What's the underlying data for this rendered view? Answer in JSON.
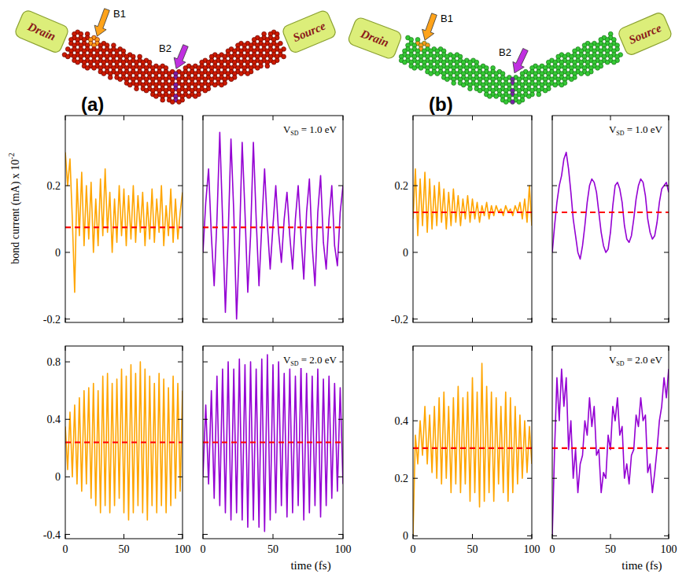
{
  "diagrams": [
    {
      "letter": "(a)",
      "drain": "Drain",
      "source": "Source",
      "bond_labels": [
        "B1",
        "B2"
      ]
    },
    {
      "letter": "(b)",
      "drain": "Drain",
      "source": "Source",
      "bond_labels": [
        "B1",
        "B2"
      ]
    }
  ],
  "chart_data": [
    {
      "type": "line",
      "ylabel": "bond current (mA) x 10",
      "ylabel_sup": "-2",
      "x": [
        0,
        2,
        4,
        6,
        8,
        10,
        12,
        14,
        16,
        18,
        20,
        22,
        24,
        26,
        28,
        30,
        32,
        34,
        36,
        38,
        40,
        42,
        44,
        46,
        48,
        50,
        52,
        54,
        56,
        58,
        60,
        62,
        64,
        66,
        68,
        70,
        72,
        74,
        76,
        78,
        80,
        82,
        84,
        86,
        88,
        90,
        92,
        94,
        96,
        98,
        100
      ],
      "xlim": [
        0,
        100
      ],
      "xticks": [
        0,
        50,
        100
      ],
      "ylim": [
        -0.21,
        0.41
      ],
      "yticks": [
        -0.2,
        0,
        0.2
      ],
      "tick_labels": "y",
      "series": [
        {
          "color": "#ffa500",
          "line_style": "solid",
          "values": [
            0.3,
            0.2,
            0.28,
            0.1,
            -0.12,
            0.22,
            0.05,
            0.24,
            0.02,
            0.2,
            0.04,
            0.21,
            0,
            0.16,
            0.02,
            0.22,
            0.05,
            0.25,
            0.06,
            0.18,
            0,
            0.16,
            0.03,
            0.2,
            0.05,
            0.19,
            0.02,
            0.17,
            0.04,
            0.2,
            0.03,
            0.17,
            0.06,
            0.18,
            0.02,
            0.15,
            0.04,
            0.19,
            0.03,
            0.16,
            0.06,
            0.2,
            0.02,
            0.14,
            0.05,
            0.19,
            0.03,
            0.16,
            0.04,
            0.12,
            0.18
          ]
        }
      ],
      "mean": {
        "value": 0.075,
        "color": "#ff0000",
        "line_style": "dashed"
      }
    },
    {
      "type": "line",
      "x": [
        0,
        2,
        4,
        6,
        8,
        10,
        12,
        14,
        16,
        18,
        20,
        22,
        24,
        26,
        28,
        30,
        32,
        34,
        36,
        38,
        40,
        42,
        44,
        46,
        48,
        50,
        52,
        54,
        56,
        58,
        60,
        62,
        64,
        66,
        68,
        70,
        72,
        74,
        76,
        78,
        80,
        82,
        84,
        86,
        88,
        90,
        92,
        94,
        96,
        98,
        100
      ],
      "xlim": [
        0,
        100
      ],
      "xticks": [
        0,
        50,
        100
      ],
      "ylim": [
        -0.21,
        0.41
      ],
      "yticks": [
        -0.2,
        0,
        0.2
      ],
      "tick_labels": false,
      "annotation": {
        "main": "V",
        "sub": "SD",
        "rest": " = 1.0 eV"
      },
      "series": [
        {
          "color": "#9400d3",
          "line_style": "solid",
          "values": [
            0,
            0.15,
            0.25,
            0.05,
            -0.1,
            0.1,
            0.36,
            0.1,
            -0.18,
            0.05,
            0.34,
            0.12,
            -0.2,
            0.02,
            0.33,
            0.12,
            -0.12,
            0.05,
            0.33,
            0.1,
            -0.1,
            0.08,
            0.25,
            0.08,
            -0.05,
            0.08,
            0.2,
            0.06,
            -0.03,
            0.1,
            0.18,
            0.05,
            -0.05,
            0.1,
            0.2,
            0.05,
            -0.08,
            0.12,
            0.22,
            0.02,
            -0.1,
            0.12,
            0.23,
            0.03,
            -0.05,
            0.1,
            0.2,
            0.02,
            -0.04,
            0.12,
            0.2
          ]
        }
      ],
      "mean": {
        "value": 0.075,
        "color": "#ff0000",
        "line_style": "dashed"
      }
    },
    {
      "type": "line",
      "x": [
        0,
        2,
        4,
        6,
        8,
        10,
        12,
        14,
        16,
        18,
        20,
        22,
        24,
        26,
        28,
        30,
        32,
        34,
        36,
        38,
        40,
        42,
        44,
        46,
        48,
        50,
        52,
        54,
        56,
        58,
        60,
        62,
        64,
        66,
        68,
        70,
        72,
        74,
        76,
        78,
        80,
        82,
        84,
        86,
        88,
        90,
        92,
        94,
        96,
        98,
        100
      ],
      "xlim": [
        0,
        100
      ],
      "xticks": [
        0,
        50,
        100
      ],
      "ylim": [
        -0.43,
        0.91
      ],
      "yticks": [
        -0.4,
        0,
        0.4,
        0.8
      ],
      "tick_labels": true,
      "series": [
        {
          "color": "#ffa500",
          "line_style": "solid",
          "values": [
            0.35,
            0.05,
            0.45,
            0,
            0.5,
            -0.05,
            0.55,
            -0.1,
            0.6,
            -0.05,
            0.62,
            -0.15,
            0.65,
            -0.2,
            0.6,
            -0.25,
            0.7,
            -0.2,
            0.72,
            -0.25,
            0.65,
            -0.2,
            0.68,
            -0.15,
            0.75,
            -0.25,
            0.7,
            -0.3,
            0.78,
            -0.25,
            0.72,
            -0.2,
            0.8,
            -0.25,
            0.75,
            -0.3,
            0.7,
            -0.2,
            0.65,
            -0.25,
            0.72,
            -0.2,
            0.68,
            -0.25,
            0.62,
            -0.2,
            0.7,
            -0.15,
            0.65,
            -0.1,
            0.6
          ]
        }
      ],
      "mean": {
        "value": 0.24,
        "color": "#ff0000",
        "line_style": "dashed"
      }
    },
    {
      "type": "line",
      "xlabel": "time (fs)",
      "x": [
        0,
        2,
        4,
        6,
        8,
        10,
        12,
        14,
        16,
        18,
        20,
        22,
        24,
        26,
        28,
        30,
        32,
        34,
        36,
        38,
        40,
        42,
        44,
        46,
        48,
        50,
        52,
        54,
        56,
        58,
        60,
        62,
        64,
        66,
        68,
        70,
        72,
        74,
        76,
        78,
        80,
        82,
        84,
        86,
        88,
        90,
        92,
        94,
        96,
        98,
        100
      ],
      "xlim": [
        0,
        100
      ],
      "xticks": [
        0,
        50,
        100
      ],
      "ylim": [
        -0.43,
        0.91
      ],
      "yticks": [
        -0.4,
        0,
        0.4,
        0.8
      ],
      "tick_labels": "x",
      "annotation": {
        "main": "V",
        "sub": "SD",
        "rest": " = 2.0 eV"
      },
      "series": [
        {
          "color": "#9400d3",
          "line_style": "solid",
          "values": [
            0,
            0.5,
            -0.05,
            0.6,
            -0.15,
            0.7,
            -0.2,
            0.75,
            -0.25,
            0.8,
            -0.3,
            0.75,
            -0.25,
            0.82,
            -0.3,
            0.78,
            -0.35,
            0.8,
            -0.3,
            0.75,
            -0.35,
            0.82,
            -0.38,
            0.85,
            -0.3,
            0.78,
            -0.25,
            0.8,
            -0.2,
            0.72,
            -0.28,
            0.75,
            -0.25,
            0.7,
            -0.2,
            0.78,
            -0.3,
            0.72,
            -0.25,
            0.7,
            -0.2,
            0.75,
            -0.28,
            0.68,
            -0.2,
            0.7,
            -0.15,
            0.65,
            -0.1,
            0.62,
            -0.05
          ]
        }
      ],
      "mean": {
        "value": 0.24,
        "color": "#ff0000",
        "line_style": "dashed"
      }
    },
    {
      "type": "line",
      "x": [
        0,
        2,
        4,
        6,
        8,
        10,
        12,
        14,
        16,
        18,
        20,
        22,
        24,
        26,
        28,
        30,
        32,
        34,
        36,
        38,
        40,
        42,
        44,
        46,
        48,
        50,
        52,
        54,
        56,
        58,
        60,
        62,
        64,
        66,
        68,
        70,
        72,
        74,
        76,
        78,
        80,
        82,
        84,
        86,
        88,
        90,
        92,
        94,
        96,
        98,
        100
      ],
      "xlim": [
        0,
        100
      ],
      "xticks": [
        0,
        50,
        100
      ],
      "ylim": [
        -0.21,
        0.41
      ],
      "yticks": [
        -0.2,
        0,
        0.2
      ],
      "tick_labels": "y",
      "series": [
        {
          "color": "#ffa500",
          "line_style": "solid",
          "values": [
            0.1,
            0.25,
            0.05,
            0.22,
            0.08,
            0.24,
            0.06,
            0.22,
            0.07,
            0.2,
            0.08,
            0.21,
            0.09,
            0.19,
            0.07,
            0.18,
            0.08,
            0.19,
            0.09,
            0.17,
            0.08,
            0.16,
            0.1,
            0.17,
            0.09,
            0.16,
            0.1,
            0.15,
            0.09,
            0.14,
            0.11,
            0.15,
            0.1,
            0.14,
            0.11,
            0.14,
            0.12,
            0.13,
            0.11,
            0.14,
            0.12,
            0.13,
            0.11,
            0.14,
            0.12,
            0.15,
            0.1,
            0.16,
            0.09,
            0.2,
            0.08
          ]
        }
      ],
      "mean": {
        "value": 0.12,
        "color": "#ff0000",
        "line_style": "dashed"
      }
    },
    {
      "type": "line",
      "x": [
        0,
        2,
        4,
        6,
        8,
        10,
        12,
        14,
        16,
        18,
        20,
        22,
        24,
        26,
        28,
        30,
        32,
        34,
        36,
        38,
        40,
        42,
        44,
        46,
        48,
        50,
        52,
        54,
        56,
        58,
        60,
        62,
        64,
        66,
        68,
        70,
        72,
        74,
        76,
        78,
        80,
        82,
        84,
        86,
        88,
        90,
        92,
        94,
        96,
        98,
        100
      ],
      "xlim": [
        0,
        100
      ],
      "xticks": [
        0,
        50,
        100
      ],
      "ylim": [
        -0.21,
        0.41
      ],
      "yticks": [
        -0.2,
        0,
        0.2
      ],
      "tick_labels": false,
      "annotation": {
        "main": "V",
        "sub": "SD",
        "rest": " = 1.0 eV"
      },
      "series": [
        {
          "color": "#9400d3",
          "line_style": "solid",
          "values": [
            0,
            0.08,
            0.15,
            0.2,
            0.23,
            0.28,
            0.3,
            0.25,
            0.18,
            0.1,
            0.05,
            0,
            -0.02,
            0.02,
            0.08,
            0.15,
            0.2,
            0.22,
            0.21,
            0.18,
            0.12,
            0.06,
            0.02,
            0,
            0.01,
            0.06,
            0.14,
            0.2,
            0.21,
            0.19,
            0.15,
            0.08,
            0.04,
            0.03,
            0.05,
            0.1,
            0.16,
            0.2,
            0.22,
            0.21,
            0.17,
            0.1,
            0.06,
            0.04,
            0.05,
            0.09,
            0.15,
            0.19,
            0.2,
            0.21,
            0.18
          ]
        }
      ],
      "mean": {
        "value": 0.12,
        "color": "#ff0000",
        "line_style": "dashed"
      }
    },
    {
      "type": "line",
      "x": [
        0,
        2,
        4,
        6,
        8,
        10,
        12,
        14,
        16,
        18,
        20,
        22,
        24,
        26,
        28,
        30,
        32,
        34,
        36,
        38,
        40,
        42,
        44,
        46,
        48,
        50,
        52,
        54,
        56,
        58,
        60,
        62,
        64,
        66,
        68,
        70,
        72,
        74,
        76,
        78,
        80,
        82,
        84,
        86,
        88,
        90,
        92,
        94,
        96,
        98,
        100
      ],
      "xlim": [
        0,
        100
      ],
      "xticks": [
        0,
        50,
        100
      ],
      "ylim": [
        -0.01,
        0.66
      ],
      "yticks": [
        0,
        0.2,
        0.4
      ],
      "tick_labels": true,
      "series": [
        {
          "color": "#ffa500",
          "line_style": "solid",
          "values": [
            0,
            0.35,
            0.25,
            0.4,
            0.28,
            0.45,
            0.25,
            0.42,
            0.22,
            0.45,
            0.2,
            0.48,
            0.18,
            0.5,
            0.2,
            0.45,
            0.15,
            0.48,
            0.18,
            0.52,
            0.15,
            0.48,
            0.18,
            0.5,
            0.12,
            0.55,
            0.15,
            0.5,
            0.1,
            0.6,
            0.12,
            0.52,
            0.15,
            0.5,
            0.12,
            0.48,
            0.18,
            0.45,
            0.15,
            0.5,
            0.12,
            0.48,
            0.15,
            0.45,
            0.18,
            0.42,
            0.2,
            0.4,
            0.22,
            0.38,
            0.25
          ]
        }
      ],
      "mean": {
        "value": 0.305,
        "color": "#ff0000",
        "line_style": "dashed"
      }
    },
    {
      "type": "line",
      "xlabel": "time (fs)",
      "x": [
        0,
        2,
        4,
        6,
        8,
        10,
        12,
        14,
        16,
        18,
        20,
        22,
        24,
        26,
        28,
        30,
        32,
        34,
        36,
        38,
        40,
        42,
        44,
        46,
        48,
        50,
        52,
        54,
        56,
        58,
        60,
        62,
        64,
        66,
        68,
        70,
        72,
        74,
        76,
        78,
        80,
        82,
        84,
        86,
        88,
        90,
        92,
        94,
        96,
        98,
        100
      ],
      "xlim": [
        0,
        100
      ],
      "xticks": [
        0,
        50,
        100
      ],
      "ylim": [
        -0.01,
        0.66
      ],
      "yticks": [
        0,
        0.2,
        0.4
      ],
      "tick_labels": "x",
      "annotation": {
        "main": "V",
        "sub": "SD",
        "rest": " = 2.0 eV"
      },
      "series": [
        {
          "color": "#9400d3",
          "line_style": "solid",
          "values": [
            0,
            0.3,
            0.55,
            0.4,
            0.58,
            0.45,
            0.55,
            0.3,
            0.4,
            0.2,
            0.3,
            0.15,
            0.25,
            0.28,
            0.4,
            0.35,
            0.48,
            0.38,
            0.45,
            0.28,
            0.3,
            0.15,
            0.22,
            0.2,
            0.35,
            0.3,
            0.45,
            0.4,
            0.48,
            0.35,
            0.38,
            0.2,
            0.25,
            0.18,
            0.28,
            0.3,
            0.42,
            0.38,
            0.48,
            0.4,
            0.42,
            0.22,
            0.25,
            0.15,
            0.22,
            0.3,
            0.4,
            0.45,
            0.55,
            0.48,
            0.58
          ]
        }
      ],
      "mean": {
        "value": 0.305,
        "color": "#ff0000",
        "line_style": "dashed"
      }
    }
  ]
}
